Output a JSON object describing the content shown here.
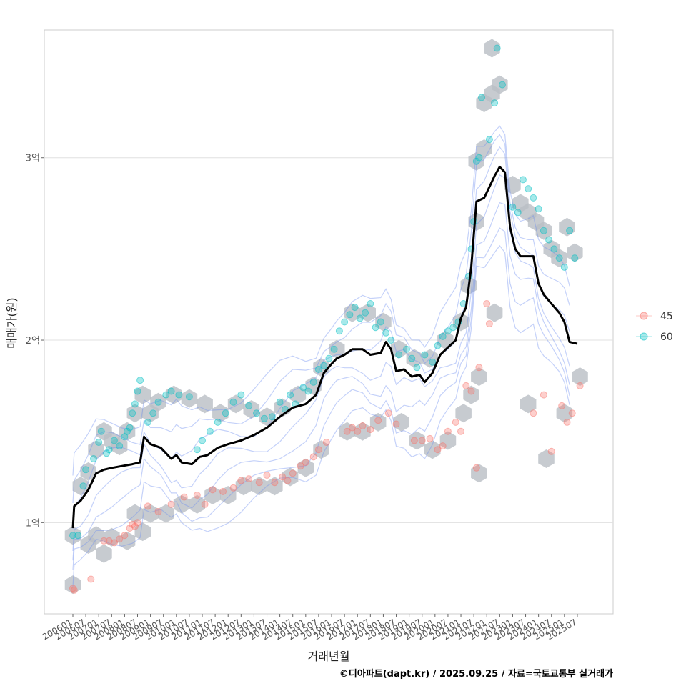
{
  "chart_data": {
    "type": "scatter",
    "title": "",
    "xlabel": "거래년월",
    "ylabel": "매매가(원)",
    "caption": "©디아파트(dapt.kr) / 2025.09.25 / 자료=국토교통부 실거래가",
    "x_range": [
      2006.0,
      2025.75
    ],
    "ylim": [
      0.5,
      3.7
    ],
    "y_ticks": [
      {
        "v": 1,
        "label": "1억"
      },
      {
        "v": 2,
        "label": "2억"
      },
      {
        "v": 3,
        "label": "3억"
      }
    ],
    "x_ticks": [
      "200601",
      "200607",
      "200701",
      "200707",
      "200801",
      "200807",
      "200901",
      "200907",
      "201001",
      "201007",
      "201101",
      "201107",
      "201201",
      "201207",
      "201301",
      "201307",
      "201401",
      "201407",
      "201501",
      "201507",
      "201601",
      "201607",
      "201701",
      "201707",
      "201801",
      "201807",
      "201901",
      "201907",
      "202001",
      "202007",
      "202101",
      "202107",
      "202201",
      "202207",
      "202301",
      "202307",
      "202401",
      "202407",
      "202501",
      "202507"
    ],
    "legend": {
      "position": "right",
      "entries": [
        {
          "name": "45",
          "color": "#F8766D"
        },
        {
          "name": "60",
          "color": "#00BFC4"
        }
      ]
    },
    "trend_line": [
      [
        2006.0,
        0.97
      ],
      [
        2006.05,
        1.09
      ],
      [
        2006.3,
        1.12
      ],
      [
        2006.6,
        1.18
      ],
      [
        2006.9,
        1.27
      ],
      [
        2007.2,
        1.29
      ],
      [
        2007.5,
        1.3
      ],
      [
        2007.9,
        1.31
      ],
      [
        2008.3,
        1.32
      ],
      [
        2008.6,
        1.33
      ],
      [
        2008.75,
        1.47
      ],
      [
        2009.0,
        1.43
      ],
      [
        2009.4,
        1.41
      ],
      [
        2009.8,
        1.35
      ],
      [
        2010.0,
        1.37
      ],
      [
        2010.2,
        1.33
      ],
      [
        2010.6,
        1.32
      ],
      [
        2010.9,
        1.36
      ],
      [
        2011.2,
        1.37
      ],
      [
        2011.6,
        1.41
      ],
      [
        2012.0,
        1.43
      ],
      [
        2012.5,
        1.45
      ],
      [
        2013.0,
        1.48
      ],
      [
        2013.5,
        1.52
      ],
      [
        2014.0,
        1.58
      ],
      [
        2014.5,
        1.63
      ],
      [
        2015.0,
        1.65
      ],
      [
        2015.4,
        1.7
      ],
      [
        2015.7,
        1.82
      ],
      [
        2016.0,
        1.87
      ],
      [
        2016.2,
        1.9
      ],
      [
        2016.5,
        1.92
      ],
      [
        2016.8,
        1.95
      ],
      [
        2017.2,
        1.95
      ],
      [
        2017.5,
        1.92
      ],
      [
        2017.9,
        1.93
      ],
      [
        2018.1,
        1.99
      ],
      [
        2018.3,
        1.95
      ],
      [
        2018.5,
        1.83
      ],
      [
        2018.8,
        1.84
      ],
      [
        2019.1,
        1.8
      ],
      [
        2019.4,
        1.81
      ],
      [
        2019.6,
        1.77
      ],
      [
        2019.9,
        1.82
      ],
      [
        2020.2,
        1.92
      ],
      [
        2020.5,
        1.96
      ],
      [
        2020.8,
        2.0
      ],
      [
        2021.0,
        2.12
      ],
      [
        2021.2,
        2.18
      ],
      [
        2021.4,
        2.4
      ],
      [
        2021.6,
        2.76
      ],
      [
        2021.9,
        2.78
      ],
      [
        2022.1,
        2.84
      ],
      [
        2022.3,
        2.9
      ],
      [
        2022.5,
        2.95
      ],
      [
        2022.7,
        2.92
      ],
      [
        2022.9,
        2.62
      ],
      [
        2023.1,
        2.5
      ],
      [
        2023.3,
        2.46
      ],
      [
        2023.6,
        2.46
      ],
      [
        2023.8,
        2.46
      ],
      [
        2024.0,
        2.31
      ],
      [
        2024.2,
        2.25
      ],
      [
        2024.5,
        2.2
      ],
      [
        2024.8,
        2.15
      ],
      [
        2025.0,
        2.1
      ],
      [
        2025.2,
        1.99
      ],
      [
        2025.5,
        1.98
      ]
    ],
    "series": [
      {
        "name": "45",
        "color": "#F8766D",
        "points": [
          [
            2006.0,
            0.64
          ],
          [
            2006.05,
            0.63
          ],
          [
            2006.7,
            0.69
          ],
          [
            2007.2,
            0.9
          ],
          [
            2007.4,
            0.9
          ],
          [
            2007.6,
            0.89
          ],
          [
            2007.8,
            0.91
          ],
          [
            2008.0,
            0.93
          ],
          [
            2008.2,
            0.97
          ],
          [
            2008.3,
            0.99
          ],
          [
            2008.4,
            0.98
          ],
          [
            2008.5,
            1.0
          ],
          [
            2008.9,
            1.09
          ],
          [
            2009.3,
            1.06
          ],
          [
            2009.8,
            1.1
          ],
          [
            2010.3,
            1.14
          ],
          [
            2010.8,
            1.15
          ],
          [
            2011.1,
            1.1
          ],
          [
            2011.4,
            1.18
          ],
          [
            2011.8,
            1.17
          ],
          [
            2012.2,
            1.19
          ],
          [
            2012.5,
            1.23
          ],
          [
            2012.8,
            1.24
          ],
          [
            2013.2,
            1.22
          ],
          [
            2013.5,
            1.26
          ],
          [
            2013.8,
            1.22
          ],
          [
            2014.1,
            1.25
          ],
          [
            2014.3,
            1.23
          ],
          [
            2014.5,
            1.27
          ],
          [
            2014.8,
            1.31
          ],
          [
            2015.0,
            1.33
          ],
          [
            2015.3,
            1.36
          ],
          [
            2015.5,
            1.4
          ],
          [
            2015.8,
            1.44
          ],
          [
            2016.6,
            1.5
          ],
          [
            2016.8,
            1.52
          ],
          [
            2017.0,
            1.5
          ],
          [
            2017.2,
            1.53
          ],
          [
            2017.5,
            1.51
          ],
          [
            2017.8,
            1.56
          ],
          [
            2018.2,
            1.6
          ],
          [
            2018.5,
            1.54
          ],
          [
            2019.2,
            1.45
          ],
          [
            2019.5,
            1.45
          ],
          [
            2019.8,
            1.46
          ],
          [
            2020.1,
            1.4
          ],
          [
            2020.3,
            1.42
          ],
          [
            2020.5,
            1.5
          ],
          [
            2020.8,
            1.55
          ],
          [
            2021.0,
            1.5
          ],
          [
            2021.2,
            1.75
          ],
          [
            2021.4,
            1.72
          ],
          [
            2021.6,
            1.3
          ],
          [
            2021.7,
            1.85
          ],
          [
            2022.0,
            2.2
          ],
          [
            2022.1,
            2.09
          ],
          [
            2023.8,
            1.6
          ],
          [
            2024.2,
            1.7
          ],
          [
            2024.5,
            1.39
          ],
          [
            2024.9,
            1.64
          ],
          [
            2025.1,
            1.55
          ],
          [
            2025.3,
            1.6
          ],
          [
            2025.6,
            1.75
          ]
        ]
      },
      {
        "name": "60",
        "color": "#00BFC4",
        "points": [
          [
            2006.0,
            0.93
          ],
          [
            2006.2,
            0.93
          ],
          [
            2006.4,
            1.2
          ],
          [
            2006.5,
            1.29
          ],
          [
            2006.8,
            1.35
          ],
          [
            2007.0,
            1.44
          ],
          [
            2007.1,
            1.5
          ],
          [
            2007.3,
            1.38
          ],
          [
            2007.4,
            1.4
          ],
          [
            2007.6,
            1.45
          ],
          [
            2007.8,
            1.42
          ],
          [
            2008.0,
            1.47
          ],
          [
            2008.1,
            1.5
          ],
          [
            2008.2,
            1.52
          ],
          [
            2008.3,
            1.6
          ],
          [
            2008.4,
            1.65
          ],
          [
            2008.5,
            1.72
          ],
          [
            2008.6,
            1.78
          ],
          [
            2008.9,
            1.55
          ],
          [
            2009.1,
            1.6
          ],
          [
            2009.3,
            1.66
          ],
          [
            2009.6,
            1.7
          ],
          [
            2009.8,
            1.72
          ],
          [
            2010.1,
            1.7
          ],
          [
            2010.5,
            1.69
          ],
          [
            2010.8,
            1.4
          ],
          [
            2011.0,
            1.45
          ],
          [
            2011.3,
            1.5
          ],
          [
            2011.6,
            1.55
          ],
          [
            2011.9,
            1.6
          ],
          [
            2012.2,
            1.66
          ],
          [
            2012.5,
            1.7
          ],
          [
            2012.8,
            1.64
          ],
          [
            2013.1,
            1.6
          ],
          [
            2013.4,
            1.57
          ],
          [
            2013.7,
            1.58
          ],
          [
            2014.0,
            1.66
          ],
          [
            2014.2,
            1.62
          ],
          [
            2014.4,
            1.7
          ],
          [
            2014.6,
            1.65
          ],
          [
            2014.9,
            1.74
          ],
          [
            2015.1,
            1.72
          ],
          [
            2015.3,
            1.77
          ],
          [
            2015.5,
            1.84
          ],
          [
            2015.7,
            1.86
          ],
          [
            2015.9,
            1.9
          ],
          [
            2016.1,
            1.95
          ],
          [
            2016.3,
            2.05
          ],
          [
            2016.5,
            2.1
          ],
          [
            2016.7,
            2.14
          ],
          [
            2016.9,
            2.18
          ],
          [
            2017.1,
            2.12
          ],
          [
            2017.3,
            2.15
          ],
          [
            2017.5,
            2.2
          ],
          [
            2017.7,
            2.07
          ],
          [
            2017.9,
            2.1
          ],
          [
            2018.1,
            2.04
          ],
          [
            2018.3,
            2.0
          ],
          [
            2018.6,
            1.92
          ],
          [
            2018.9,
            1.95
          ],
          [
            2019.1,
            1.9
          ],
          [
            2019.3,
            1.85
          ],
          [
            2019.6,
            1.92
          ],
          [
            2019.9,
            1.88
          ],
          [
            2020.1,
            1.97
          ],
          [
            2020.3,
            2.02
          ],
          [
            2020.5,
            2.05
          ],
          [
            2020.7,
            2.07
          ],
          [
            2020.9,
            2.1
          ],
          [
            2021.1,
            2.2
          ],
          [
            2021.3,
            2.35
          ],
          [
            2021.4,
            2.5
          ],
          [
            2021.5,
            2.65
          ],
          [
            2021.6,
            2.98
          ],
          [
            2021.7,
            3.0
          ],
          [
            2021.8,
            3.33
          ],
          [
            2022.1,
            3.1
          ],
          [
            2022.3,
            3.3
          ],
          [
            2022.4,
            3.6
          ],
          [
            2022.6,
            3.4
          ],
          [
            2023.0,
            2.73
          ],
          [
            2023.2,
            2.7
          ],
          [
            2023.4,
            2.88
          ],
          [
            2023.6,
            2.83
          ],
          [
            2023.8,
            2.78
          ],
          [
            2024.0,
            2.72
          ],
          [
            2024.2,
            2.6
          ],
          [
            2024.4,
            2.55
          ],
          [
            2024.6,
            2.5
          ],
          [
            2024.8,
            2.45
          ],
          [
            2025.0,
            2.4
          ],
          [
            2025.2,
            2.6
          ],
          [
            2025.4,
            2.45
          ]
        ]
      }
    ],
    "hex_density_cells": [
      [
        2006.0,
        0.93
      ],
      [
        2006.6,
        0.88
      ],
      [
        2006.9,
        0.93
      ],
      [
        2007.5,
        0.92
      ],
      [
        2007.2,
        0.83
      ],
      [
        2008.1,
        0.9
      ],
      [
        2008.7,
        0.95
      ],
      [
        2008.4,
        1.05
      ],
      [
        2009.0,
        1.05
      ],
      [
        2009.6,
        1.05
      ],
      [
        2010.2,
        1.1
      ],
      [
        2010.8,
        1.1
      ],
      [
        2011.4,
        1.15
      ],
      [
        2012.0,
        1.15
      ],
      [
        2012.6,
        1.2
      ],
      [
        2013.2,
        1.2
      ],
      [
        2013.8,
        1.2
      ],
      [
        2014.4,
        1.25
      ],
      [
        2015.0,
        1.3
      ],
      [
        2015.6,
        1.4
      ],
      [
        2016.6,
        1.5
      ],
      [
        2017.2,
        1.5
      ],
      [
        2017.8,
        1.55
      ],
      [
        2018.7,
        1.55
      ],
      [
        2019.3,
        1.45
      ],
      [
        2019.9,
        1.4
      ],
      [
        2020.5,
        1.45
      ],
      [
        2021.1,
        1.6
      ],
      [
        2021.7,
        1.8
      ],
      [
        2021.4,
        1.7
      ],
      [
        2021.7,
        1.27
      ],
      [
        2022.3,
        2.15
      ],
      [
        2023.6,
        1.65
      ],
      [
        2024.3,
        1.35
      ],
      [
        2025.0,
        1.6
      ],
      [
        2025.6,
        1.8
      ],
      [
        2006.3,
        1.2
      ],
      [
        2006.6,
        1.28
      ],
      [
        2006.9,
        1.4
      ],
      [
        2007.2,
        1.5
      ],
      [
        2007.5,
        1.45
      ],
      [
        2007.8,
        1.42
      ],
      [
        2008.1,
        1.5
      ],
      [
        2008.4,
        1.6
      ],
      [
        2008.7,
        1.7
      ],
      [
        2009.0,
        1.6
      ],
      [
        2009.3,
        1.66
      ],
      [
        2009.9,
        1.7
      ],
      [
        2010.5,
        1.68
      ],
      [
        2011.1,
        1.65
      ],
      [
        2011.7,
        1.6
      ],
      [
        2012.3,
        1.65
      ],
      [
        2012.9,
        1.62
      ],
      [
        2013.5,
        1.58
      ],
      [
        2014.1,
        1.63
      ],
      [
        2014.7,
        1.7
      ],
      [
        2015.3,
        1.75
      ],
      [
        2015.6,
        1.85
      ],
      [
        2016.2,
        1.95
      ],
      [
        2016.8,
        2.15
      ],
      [
        2017.4,
        2.15
      ],
      [
        2018.0,
        2.1
      ],
      [
        2018.6,
        1.95
      ],
      [
        2019.2,
        1.9
      ],
      [
        2019.8,
        1.9
      ],
      [
        2020.4,
        2.0
      ],
      [
        2021.0,
        2.1
      ],
      [
        2021.3,
        2.3
      ],
      [
        2021.6,
        2.65
      ],
      [
        2021.9,
        3.05
      ],
      [
        2021.6,
        2.98
      ],
      [
        2021.9,
        3.3
      ],
      [
        2022.2,
        3.35
      ],
      [
        2022.5,
        3.4
      ],
      [
        2022.2,
        3.6
      ],
      [
        2023.0,
        2.85
      ],
      [
        2023.3,
        2.75
      ],
      [
        2023.6,
        2.7
      ],
      [
        2023.9,
        2.65
      ],
      [
        2024.2,
        2.6
      ],
      [
        2024.5,
        2.5
      ],
      [
        2024.8,
        2.45
      ],
      [
        2025.1,
        2.62
      ],
      [
        2025.4,
        2.48
      ],
      [
        2006.0,
        0.66
      ]
    ]
  }
}
